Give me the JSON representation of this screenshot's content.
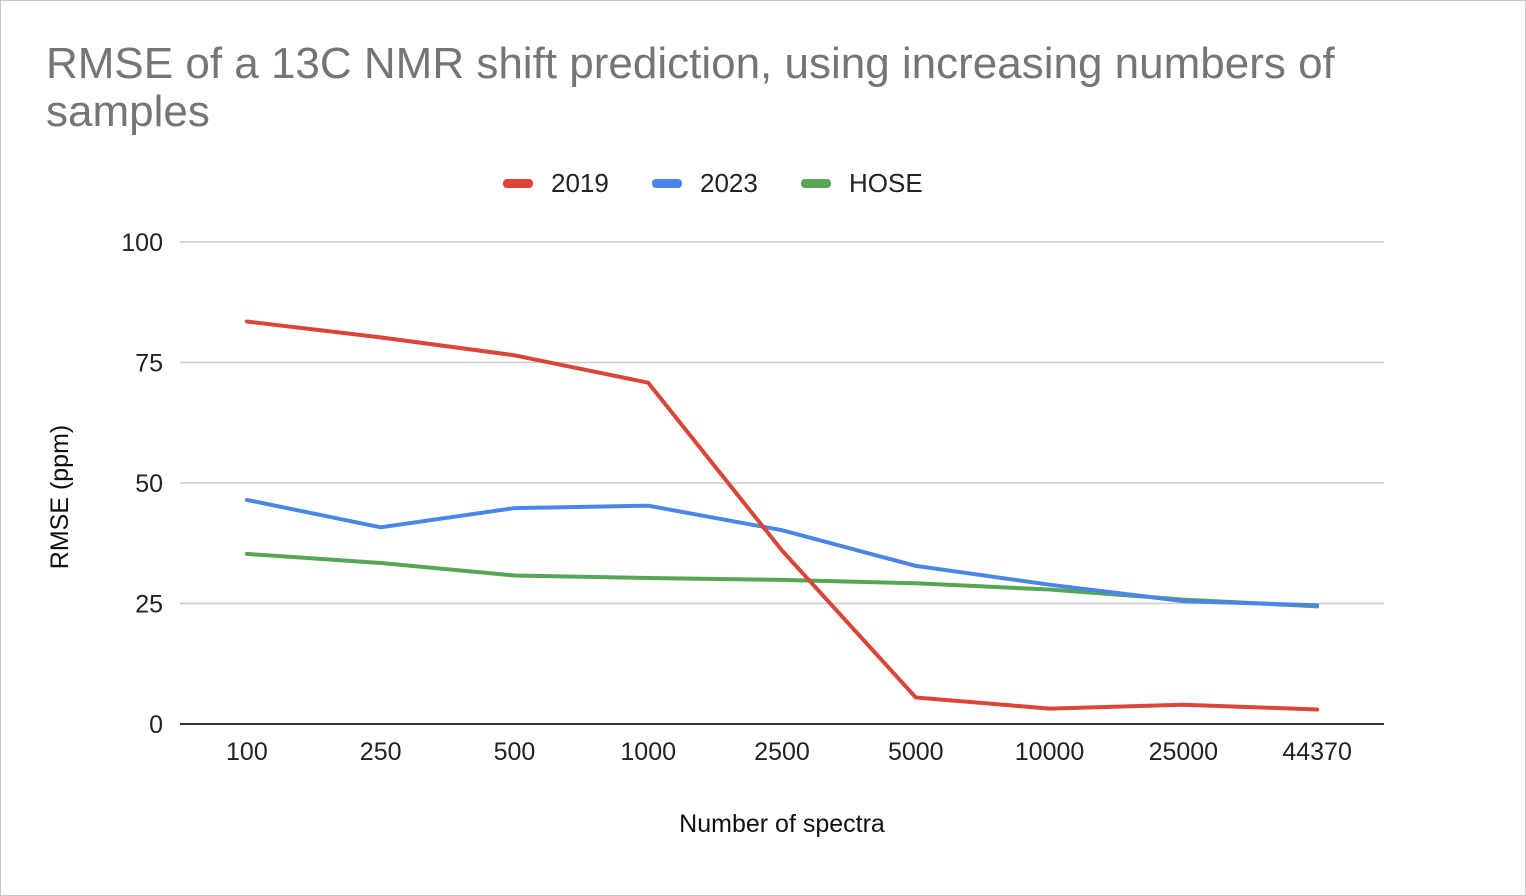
{
  "chart_data": {
    "type": "line",
    "title": "RMSE of a 13C NMR shift prediction, using increasing numbers of samples",
    "xlabel": "Number of spectra",
    "ylabel": "RMSE (ppm)",
    "categories": [
      "100",
      "250",
      "500",
      "1000",
      "2500",
      "5000",
      "10000",
      "25000",
      "44370"
    ],
    "yticks": [
      "0",
      "25",
      "50",
      "75",
      "100"
    ],
    "ylim": [
      0,
      100
    ],
    "grid": true,
    "legend_position": "top",
    "series": [
      {
        "name": "2019",
        "color": "#db4437",
        "values": [
          83.5,
          80.2,
          76.5,
          70.8,
          36.0,
          5.5,
          3.2,
          4.0,
          3.0
        ]
      },
      {
        "name": "2023",
        "color": "#4a86e8",
        "values": [
          46.5,
          40.8,
          44.8,
          45.3,
          40.2,
          32.8,
          28.9,
          25.5,
          24.6
        ]
      },
      {
        "name": "HOSE",
        "color": "#55a655",
        "values": [
          35.3,
          33.4,
          30.8,
          30.3,
          29.9,
          29.2,
          27.9,
          25.8,
          24.4
        ]
      }
    ]
  }
}
